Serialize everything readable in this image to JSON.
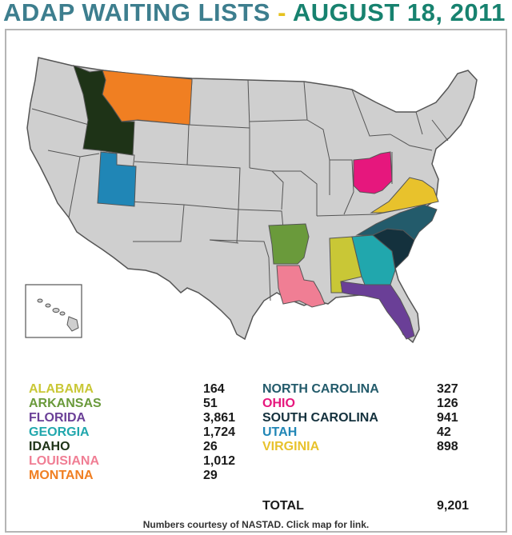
{
  "title": {
    "part1": "ADAP WAITING LISTS",
    "separator": "-",
    "part2": "AUGUST 18, 2011"
  },
  "colors": {
    "base_state": "#cfcfcf",
    "border": "#555555",
    "alabama": "#c9c736",
    "arkansas": "#6a9a3b",
    "florida": "#6a3f97",
    "georgia": "#21a7ad",
    "idaho": "#1e3317",
    "louisiana": "#f07e94",
    "montana": "#f07f22",
    "north_carolina": "#235b6b",
    "ohio": "#e6177d",
    "south_carolina": "#14313d",
    "utah": "#2086b6",
    "virginia": "#e8c22c"
  },
  "legend_left": [
    {
      "name": "ALABAMA",
      "value": "164",
      "color": "#c9c736"
    },
    {
      "name": "ARKANSAS",
      "value": "51",
      "color": "#6a9a3b"
    },
    {
      "name": "FLORIDA",
      "value": "3,861",
      "color": "#6a3f97"
    },
    {
      "name": "GEORGIA",
      "value": "1,724",
      "color": "#21a7ad"
    },
    {
      "name": "IDAHO",
      "value": "26",
      "color": "#1e3317"
    },
    {
      "name": "LOUISIANA",
      "value": "1,012",
      "color": "#f07e94"
    },
    {
      "name": "MONTANA",
      "value": "29",
      "color": "#f07f22"
    }
  ],
  "legend_right": [
    {
      "name": "NORTH CAROLINA",
      "value": "327",
      "color": "#235b6b"
    },
    {
      "name": "OHIO",
      "value": "126",
      "color": "#e6177d"
    },
    {
      "name": "SOUTH CAROLINA",
      "value": "941",
      "color": "#14313d"
    },
    {
      "name": "UTAH",
      "value": "42",
      "color": "#2086b6"
    },
    {
      "name": "VIRGINIA",
      "value": "898",
      "color": "#e8c22c"
    }
  ],
  "total": {
    "label": "TOTAL",
    "value": "9,201"
  },
  "footer": "Numbers courtesy of NASTAD. Click map for link."
}
